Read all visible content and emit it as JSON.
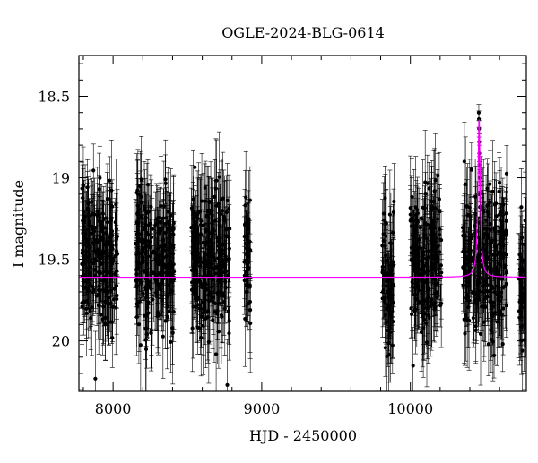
{
  "chart_data": {
    "type": "scatter",
    "title": "OGLE-2024-BLG-0614",
    "xlabel": "HJD - 2450000",
    "ylabel": "I magnitude",
    "xlim": [
      7770,
      10780
    ],
    "ylim": [
      20.31,
      18.25
    ],
    "y_inverted": true,
    "x_ticks": [
      8000,
      9000,
      10000
    ],
    "y_ticks": [
      18.5,
      19,
      19.5,
      20
    ],
    "x_tick_labels": [
      "8000",
      "9000",
      "10000"
    ],
    "y_tick_labels": [
      "18.5",
      "19",
      "19.5",
      "20"
    ],
    "grid": false,
    "observing_seasons": [
      {
        "start": 7790,
        "end": 8030,
        "mean_mag": 19.5,
        "scatter": 0.22
      },
      {
        "start": 8150,
        "end": 8410,
        "mean_mag": 19.5,
        "scatter": 0.22
      },
      {
        "start": 8525,
        "end": 8790,
        "mean_mag": 19.5,
        "scatter": 0.22
      },
      {
        "start": 8880,
        "end": 8925,
        "mean_mag": 19.55,
        "scatter": 0.22
      },
      {
        "start": 9810,
        "end": 9895,
        "mean_mag": 19.6,
        "scatter": 0.22
      },
      {
        "start": 10000,
        "end": 10160,
        "mean_mag": 19.5,
        "scatter": 0.22
      },
      {
        "start": 10160,
        "end": 10210,
        "mean_mag": 19.45,
        "scatter": 0.22
      },
      {
        "start": 10350,
        "end": 10650,
        "mean_mag": 19.5,
        "scatter": 0.22
      },
      {
        "start": 10730,
        "end": 10780,
        "mean_mag": 19.6,
        "scatter": 0.22
      }
    ],
    "event_points": [
      {
        "x": 10460,
        "y": 18.6
      },
      {
        "x": 10461,
        "y": 18.64
      },
      {
        "x": 10462,
        "y": 18.7
      },
      {
        "x": 10463,
        "y": 18.78
      },
      {
        "x": 10463.5,
        "y": 18.85
      },
      {
        "x": 10464,
        "y": 18.92
      },
      {
        "x": 10465,
        "y": 19.0
      },
      {
        "x": 10466,
        "y": 19.1
      }
    ],
    "model": {
      "name": "model",
      "color": "#ff00ff",
      "baseline_mag": 19.61,
      "peak_time": 10462,
      "peak_mag": 18.62,
      "width_days": 12
    },
    "marker_color": "#000000",
    "colors": {
      "axis": "#000000",
      "points": "#000000",
      "model": "#ff00ff"
    }
  }
}
